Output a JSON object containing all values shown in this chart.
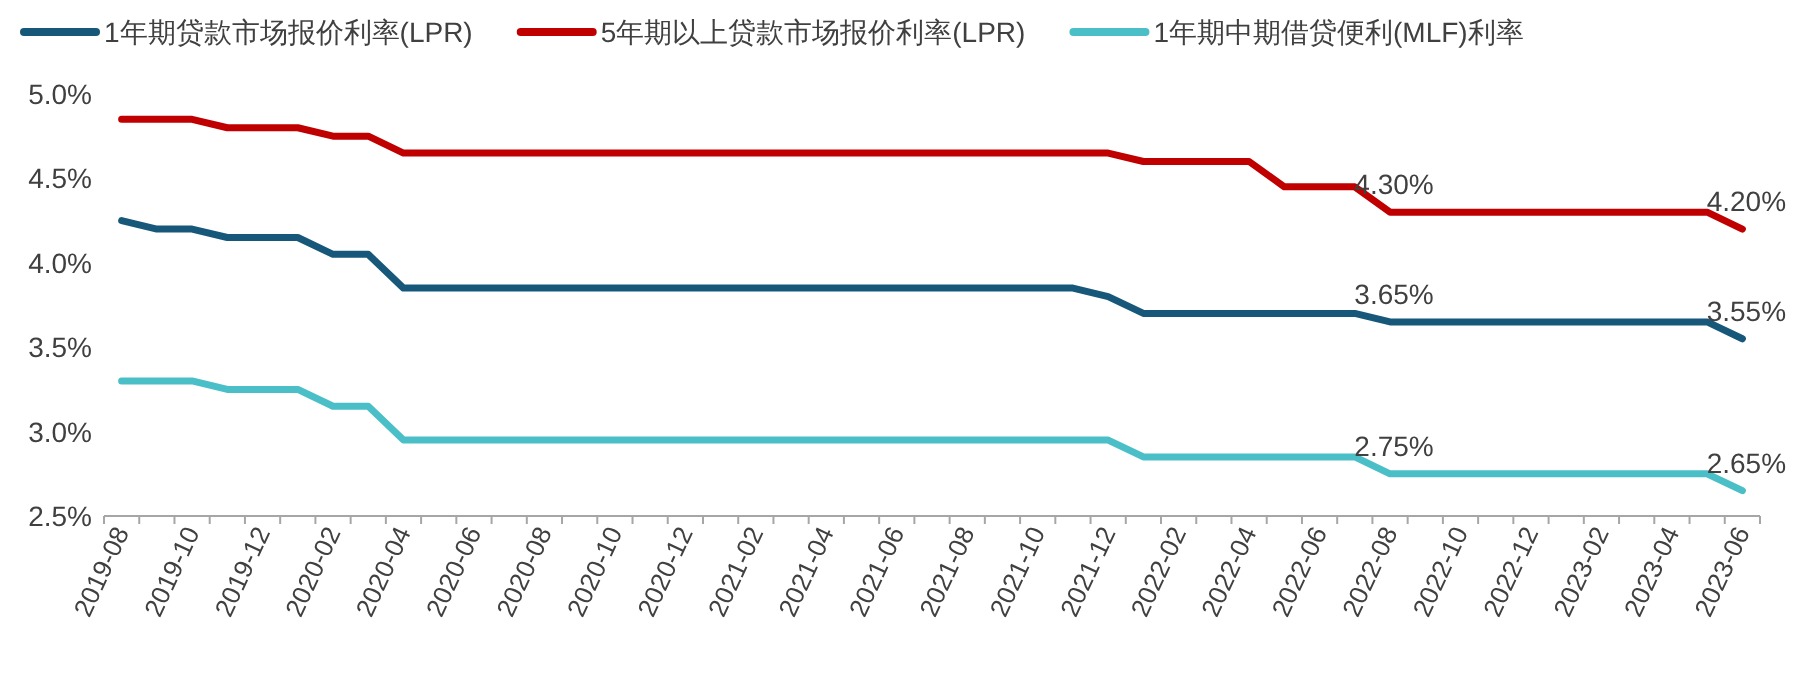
{
  "chart_data": {
    "type": "line",
    "categories": [
      "2019-08",
      null,
      "2019-10",
      null,
      "2019-12",
      null,
      "2020-02",
      null,
      "2020-04",
      null,
      "2020-06",
      null,
      "2020-08",
      null,
      "2020-10",
      null,
      "2020-12",
      null,
      "2021-02",
      null,
      "2021-04",
      null,
      "2021-06",
      null,
      "2021-08",
      null,
      "2021-10",
      null,
      "2021-12",
      null,
      "2022-02",
      null,
      "2022-04",
      null,
      "2022-06",
      null,
      "2022-08",
      null,
      "2022-10",
      null,
      "2022-12",
      null,
      "2023-02",
      null,
      "2023-04",
      null,
      "2023-06"
    ],
    "series": [
      {
        "name": "1年期贷款市场报价利率(LPR)",
        "color": "#17587a",
        "values": [
          4.25,
          4.2,
          4.2,
          4.15,
          4.15,
          4.15,
          4.05,
          4.05,
          3.85,
          3.85,
          3.85,
          3.85,
          3.85,
          3.85,
          3.85,
          3.85,
          3.85,
          3.85,
          3.85,
          3.85,
          3.85,
          3.85,
          3.85,
          3.85,
          3.85,
          3.85,
          3.85,
          3.85,
          3.8,
          3.7,
          3.7,
          3.7,
          3.7,
          3.7,
          3.7,
          3.7,
          3.65,
          3.65,
          3.65,
          3.65,
          3.65,
          3.65,
          3.65,
          3.65,
          3.65,
          3.65,
          3.55
        ],
        "value_labels": [
          null,
          null,
          null,
          null,
          null,
          null,
          null,
          null,
          null,
          null,
          null,
          null,
          null,
          null,
          null,
          null,
          null,
          null,
          null,
          null,
          null,
          null,
          null,
          null,
          null,
          null,
          null,
          null,
          null,
          null,
          null,
          null,
          null,
          null,
          null,
          null,
          "3.65%",
          null,
          null,
          null,
          null,
          null,
          null,
          null,
          null,
          null,
          "3.55%"
        ]
      },
      {
        "name": "5年期以上贷款市场报价利率(LPR)",
        "color": "#c00000",
        "values": [
          4.85,
          4.85,
          4.85,
          4.8,
          4.8,
          4.8,
          4.75,
          4.75,
          4.65,
          4.65,
          4.65,
          4.65,
          4.65,
          4.65,
          4.65,
          4.65,
          4.65,
          4.65,
          4.65,
          4.65,
          4.65,
          4.65,
          4.65,
          4.65,
          4.65,
          4.65,
          4.65,
          4.65,
          4.65,
          4.6,
          4.6,
          4.6,
          4.6,
          4.45,
          4.45,
          4.45,
          4.3,
          4.3,
          4.3,
          4.3,
          4.3,
          4.3,
          4.3,
          4.3,
          4.3,
          4.3,
          4.2
        ],
        "value_labels": [
          null,
          null,
          null,
          null,
          null,
          null,
          null,
          null,
          null,
          null,
          null,
          null,
          null,
          null,
          null,
          null,
          null,
          null,
          null,
          null,
          null,
          null,
          null,
          null,
          null,
          null,
          null,
          null,
          null,
          null,
          null,
          null,
          null,
          null,
          null,
          null,
          "4.30%",
          null,
          null,
          null,
          null,
          null,
          null,
          null,
          null,
          null,
          "4.20%"
        ]
      },
      {
        "name": "1年期中期借贷便利(MLF)利率",
        "color": "#4bbfc8",
        "values": [
          3.3,
          3.3,
          3.3,
          3.25,
          3.25,
          3.25,
          3.15,
          3.15,
          2.95,
          2.95,
          2.95,
          2.95,
          2.95,
          2.95,
          2.95,
          2.95,
          2.95,
          2.95,
          2.95,
          2.95,
          2.95,
          2.95,
          2.95,
          2.95,
          2.95,
          2.95,
          2.95,
          2.95,
          2.95,
          2.85,
          2.85,
          2.85,
          2.85,
          2.85,
          2.85,
          2.85,
          2.75,
          2.75,
          2.75,
          2.75,
          2.75,
          2.75,
          2.75,
          2.75,
          2.75,
          2.75,
          2.65
        ],
        "value_labels": [
          null,
          null,
          null,
          null,
          null,
          null,
          null,
          null,
          null,
          null,
          null,
          null,
          null,
          null,
          null,
          null,
          null,
          null,
          null,
          null,
          null,
          null,
          null,
          null,
          null,
          null,
          null,
          null,
          null,
          null,
          null,
          null,
          null,
          null,
          null,
          null,
          "2.75%",
          null,
          null,
          null,
          null,
          null,
          null,
          null,
          null,
          null,
          "2.65%"
        ]
      }
    ],
    "ylim": [
      2.5,
      5.0
    ],
    "yticks": [
      {
        "value": 2.5,
        "label": "2.5%"
      },
      {
        "value": 3.0,
        "label": "3.0%"
      },
      {
        "value": 3.5,
        "label": "3.5%"
      },
      {
        "value": 4.0,
        "label": "4.0%"
      },
      {
        "value": 4.5,
        "label": "4.5%"
      },
      {
        "value": 5.0,
        "label": "5.0%"
      }
    ],
    "legend": "top",
    "grid": false,
    "marker": "none",
    "line_style": "solid"
  }
}
